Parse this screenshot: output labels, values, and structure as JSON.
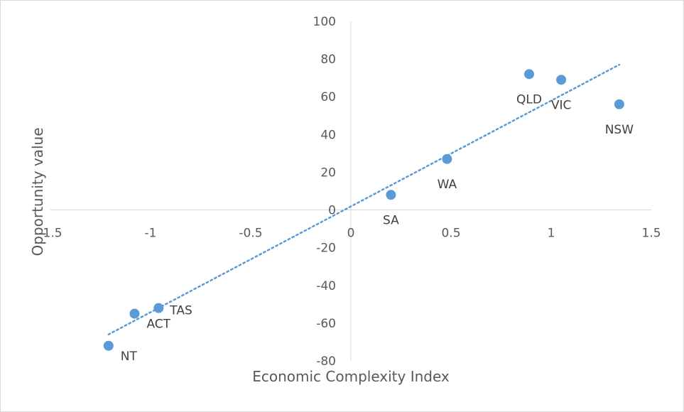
{
  "chart_data": {
    "type": "scatter",
    "title": "",
    "xlabel": "Economic Complexity Index",
    "ylabel": "Opportunity  value",
    "xlim": [
      -1.5,
      1.5
    ],
    "ylim": [
      -80,
      100
    ],
    "xticks": [
      -1.5,
      -1,
      -0.5,
      0,
      0.5,
      1,
      1.5
    ],
    "xtick_labels": [
      "-1.5",
      "-1",
      "-0.5",
      "0",
      "0.5",
      "1",
      "1.5"
    ],
    "yticks": [
      100,
      80,
      60,
      40,
      20,
      0,
      -20,
      -40,
      -60,
      -80
    ],
    "ytick_labels": [
      "100",
      "80",
      "60",
      "40",
      "20",
      "0",
      "-20",
      "-40",
      "-60",
      "-80"
    ],
    "grid": false,
    "legend": "none",
    "marker_color": "#5b9bd5",
    "trendline_color": "#5b9bd5",
    "points": [
      {
        "label": "NT",
        "x": -1.21,
        "y": -72,
        "label_pos": "below-right"
      },
      {
        "label": "ACT",
        "x": -1.08,
        "y": -55,
        "label_pos": "below-right"
      },
      {
        "label": "TAS",
        "x": -0.96,
        "y": -52,
        "label_pos": "right"
      },
      {
        "label": "SA",
        "x": 0.2,
        "y": 8,
        "label_pos": "below"
      },
      {
        "label": "WA",
        "x": 0.48,
        "y": 27,
        "label_pos": "below"
      },
      {
        "label": "QLD",
        "x": 0.89,
        "y": 72,
        "label_pos": "below"
      },
      {
        "label": "VIC",
        "x": 1.05,
        "y": 69,
        "label_pos": "below"
      },
      {
        "label": "NSW",
        "x": 1.34,
        "y": 56,
        "label_pos": "below"
      }
    ],
    "trendline": {
      "type": "linear",
      "style": "dotted",
      "x": [
        -1.21,
        1.34
      ],
      "y": [
        -66,
        77
      ]
    }
  }
}
